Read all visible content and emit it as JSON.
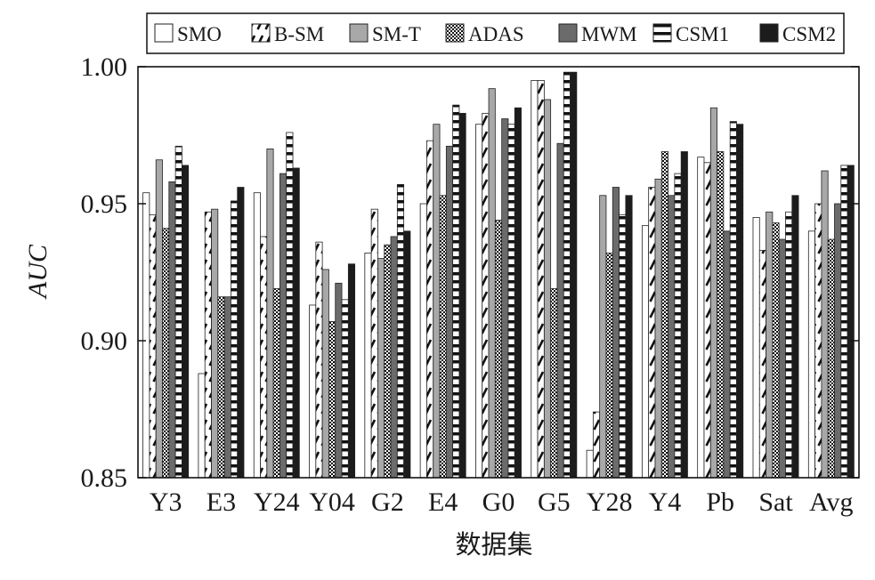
{
  "chart_data": {
    "type": "bar",
    "categories": [
      "Y3",
      "E3",
      "Y24",
      "Y04",
      "G2",
      "E4",
      "G0",
      "G5",
      "Y28",
      "Y4",
      "Pb",
      "Sat",
      "Avg"
    ],
    "series": [
      {
        "name": "SMO",
        "color": "#ffffff",
        "values": [
          0.954,
          0.888,
          0.954,
          0.913,
          0.932,
          0.95,
          0.979,
          0.995,
          0.86,
          0.942,
          0.967,
          0.945,
          0.94
        ]
      },
      {
        "name": "B-SM",
        "color": "#ffffff",
        "values": [
          0.946,
          0.947,
          0.938,
          0.936,
          0.948,
          0.973,
          0.983,
          0.995,
          0.874,
          0.956,
          0.965,
          0.933,
          0.95
        ]
      },
      {
        "name": "SM-T",
        "color": "#a8a8a8",
        "values": [
          0.966,
          0.948,
          0.97,
          0.926,
          0.93,
          0.979,
          0.992,
          0.988,
          0.953,
          0.959,
          0.985,
          0.947,
          0.962
        ]
      },
      {
        "name": "ADAS",
        "color": "#ffffff",
        "values": [
          0.941,
          0.916,
          0.919,
          0.907,
          0.935,
          0.953,
          0.944,
          0.919,
          0.932,
          0.969,
          0.969,
          0.943,
          0.937
        ]
      },
      {
        "name": "MWM",
        "color": "#6b6b6b",
        "values": [
          0.958,
          0.916,
          0.961,
          0.921,
          0.938,
          0.971,
          0.981,
          0.972,
          0.956,
          0.953,
          0.94,
          0.937,
          0.95
        ]
      },
      {
        "name": "CSM1",
        "color": "#ffffff",
        "values": [
          0.971,
          0.951,
          0.976,
          0.915,
          0.957,
          0.986,
          0.979,
          0.998,
          0.946,
          0.961,
          0.98,
          0.947,
          0.964
        ]
      },
      {
        "name": "CSM2",
        "color": "#1c1c1c",
        "values": [
          0.964,
          0.956,
          0.963,
          0.928,
          0.94,
          0.983,
          0.985,
          0.998,
          0.953,
          0.969,
          0.979,
          0.953,
          0.964
        ]
      }
    ],
    "xlabel": "数据集",
    "ylabel": "AUC",
    "ylim": [
      0.85,
      1.0
    ],
    "yticks": [
      "0.85",
      "0.90",
      "0.95",
      "1.00"
    ],
    "legend": "top",
    "grid": false
  }
}
